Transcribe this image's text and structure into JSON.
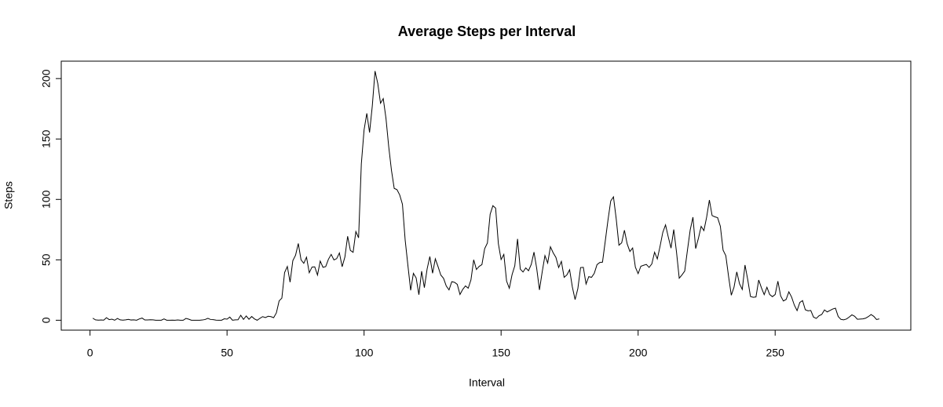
{
  "chart_data": {
    "type": "line",
    "title": "Average Steps per Interval",
    "xlabel": "Interval",
    "ylabel": "Steps",
    "x": [
      1,
      2,
      3,
      4,
      5,
      6,
      7,
      8,
      9,
      10,
      11,
      12,
      13,
      14,
      15,
      16,
      17,
      18,
      19,
      20,
      21,
      22,
      23,
      24,
      25,
      26,
      27,
      28,
      29,
      30,
      31,
      32,
      33,
      34,
      35,
      36,
      37,
      38,
      39,
      40,
      41,
      42,
      43,
      44,
      45,
      46,
      47,
      48,
      49,
      50,
      51,
      52,
      53,
      54,
      55,
      56,
      57,
      58,
      59,
      60,
      61,
      62,
      63,
      64,
      65,
      66,
      67,
      68,
      69,
      70,
      71,
      72,
      73,
      74,
      75,
      76,
      77,
      78,
      79,
      80,
      81,
      82,
      83,
      84,
      85,
      86,
      87,
      88,
      89,
      90,
      91,
      92,
      93,
      94,
      95,
      96,
      97,
      98,
      99,
      100,
      101,
      102,
      103,
      104,
      105,
      106,
      107,
      108,
      109,
      110,
      111,
      112,
      113,
      114,
      115,
      116,
      117,
      118,
      119,
      120,
      121,
      122,
      123,
      124,
      125,
      126,
      127,
      128,
      129,
      130,
      131,
      132,
      133,
      134,
      135,
      136,
      137,
      138,
      139,
      140,
      141,
      142,
      143,
      144,
      145,
      146,
      147,
      148,
      149,
      150,
      151,
      152,
      153,
      154,
      155,
      156,
      157,
      158,
      159,
      160,
      161,
      162,
      163,
      164,
      165,
      166,
      167,
      168,
      169,
      170,
      171,
      172,
      173,
      174,
      175,
      176,
      177,
      178,
      179,
      180,
      181,
      182,
      183,
      184,
      185,
      186,
      187,
      188,
      189,
      190,
      191,
      192,
      193,
      194,
      195,
      196,
      197,
      198,
      199,
      200,
      201,
      202,
      203,
      204,
      205,
      206,
      207,
      208,
      209,
      210,
      211,
      212,
      213,
      214,
      215,
      216,
      217,
      218,
      219,
      220,
      221,
      222,
      223,
      224,
      225,
      226,
      227,
      228,
      229,
      230,
      231,
      232,
      233,
      234,
      235,
      236,
      237,
      238,
      239,
      240,
      241,
      242,
      243,
      244,
      245,
      246,
      247,
      248,
      249,
      250,
      251,
      252,
      253,
      254,
      255,
      256,
      257,
      258,
      259,
      260,
      261,
      262,
      263,
      264,
      265,
      266,
      267,
      268,
      269,
      270,
      271,
      272,
      273,
      274,
      275,
      276,
      277,
      278,
      279,
      280,
      281,
      282,
      283,
      284,
      285,
      286,
      287,
      288
    ],
    "series": [
      {
        "name": "Steps",
        "color": "#000000",
        "values": [
          1.7,
          0.3,
          0.1,
          0.2,
          0.1,
          2.1,
          0.5,
          0.9,
          0,
          1.5,
          0.3,
          0.1,
          0.3,
          0.7,
          0.2,
          0.3,
          0,
          1.1,
          1.8,
          0.2,
          0.2,
          0.4,
          0.3,
          0,
          0,
          0,
          1.1,
          0,
          0,
          0.1,
          0,
          0.2,
          0,
          0,
          1.5,
          0.9,
          0,
          0,
          0,
          0,
          0.2,
          0.6,
          1.6,
          0.6,
          0.5,
          0.1,
          0,
          0,
          1.2,
          0.9,
          2.6,
          0,
          0.3,
          0.4,
          4.1,
          0.7,
          3.5,
          0.8,
          3.1,
          1.1,
          0,
          1.6,
          3,
          2.2,
          3.3,
          3,
          2.1,
          6.1,
          16,
          18.3,
          39.5,
          44.5,
          31.5,
          49.3,
          53.8,
          63.5,
          50,
          47.1,
          52.2,
          39.3,
          44,
          44.2,
          37.4,
          49,
          43.8,
          44.4,
          50.5,
          54.5,
          49.9,
          51,
          55.7,
          44.3,
          52.3,
          69.5,
          57.8,
          56.2,
          73.4,
          68.2,
          129.4,
          157.5,
          171.2,
          155.4,
          177.3,
          206.2,
          195.9,
          179.6,
          183.4,
          167,
          143.5,
          124,
          109.1,
          108.1,
          103.7,
          96,
          66.2,
          45.2,
          24.8,
          38.8,
          35,
          21.1,
          40.6,
          27,
          42.4,
          52.7,
          38.9,
          50.8,
          44.3,
          37.4,
          34.7,
          28.3,
          25.1,
          31.9,
          31.4,
          29.7,
          21.3,
          25.5,
          28.4,
          26.5,
          33.4,
          50,
          42,
          44.6,
          46,
          59.2,
          63.9,
          87.7,
          94.8,
          92.8,
          63.4,
          50.2,
          54.5,
          32.4,
          26.5,
          37.7,
          45.1,
          67.3,
          42.3,
          39.9,
          43.3,
          41,
          46.2,
          56.4,
          42.8,
          25.1,
          40,
          53.5,
          47.3,
          60.8,
          55.8,
          52,
          43.6,
          48.7,
          35.5,
          37.5,
          41.8,
          27.5,
          17.1,
          26.1,
          43.6,
          43.8,
          30,
          36.1,
          35.5,
          38.8,
          46,
          47.8,
          48.1,
          65.3,
          82.9,
          98.7,
          102.1,
          84,
          62.1,
          64.1,
          74.5,
          63.2,
          56.9,
          59.8,
          43.9,
          38.6,
          44.7,
          45.5,
          46.2,
          43.7,
          46.6,
          56.3,
          50.7,
          61.2,
          72.7,
          78.9,
          68.9,
          59.7,
          75.1,
          56.5,
          34.8,
          37.5,
          40.7,
          58,
          74.7,
          85.3,
          59.3,
          67.8,
          77.7,
          74.2,
          85.3,
          99.5,
          86.6,
          85.6,
          84.9,
          77.8,
          58,
          53.4,
          36.3,
          20.7,
          27.4,
          40,
          30.2,
          25.5,
          45.7,
          33.5,
          19.6,
          19,
          19.3,
          33.3,
          26.8,
          21.2,
          27.3,
          21.3,
          19.5,
          21.3,
          32.3,
          20.2,
          15.9,
          17.2,
          23.5,
          19.2,
          12.5,
          8,
          14.7,
          16.3,
          8.7,
          7.8,
          8.1,
          2.6,
          1.5,
          3.7,
          4.8,
          8.5,
          6.9,
          8.1,
          9.3,
          10,
          3.1,
          0.7,
          0.3,
          1,
          2.6,
          4.5,
          3.3,
          0.8,
          1,
          1.1,
          1.7,
          3,
          4.7,
          3.2,
          0.6,
          1.1
        ]
      }
    ],
    "xlim": [
      -10.5,
      299.5
    ],
    "ylim": [
      -8.2,
      214.4
    ],
    "xticks": [
      0,
      50,
      100,
      150,
      200,
      250
    ],
    "yticks": [
      0,
      50,
      100,
      150,
      200
    ]
  }
}
